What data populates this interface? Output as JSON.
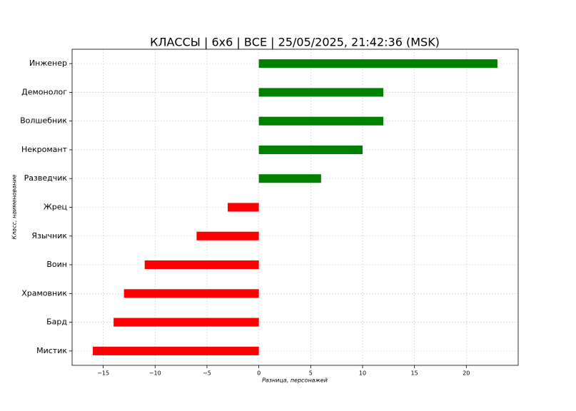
{
  "chart_data": {
    "type": "barh",
    "title": "КЛАССЫ | 6x6 | ВСЕ | 25/05/2025, 21:42:36 (MSK)",
    "xlabel": "Разница, персонажей",
    "ylabel": "Класс, наименование",
    "categories": [
      "Инженер",
      "Демонолог",
      "Волшебник",
      "Некромант",
      "Разведчик",
      "Жрец",
      "Язычник",
      "Воин",
      "Храмовник",
      "Бард",
      "Мистик"
    ],
    "values": [
      23,
      12,
      12,
      10,
      6,
      -3,
      -6,
      -11,
      -13,
      -14,
      -16
    ],
    "colors": [
      "#008000",
      "#008000",
      "#008000",
      "#008000",
      "#008000",
      "#ff0000",
      "#ff0000",
      "#ff0000",
      "#ff0000",
      "#ff0000",
      "#ff0000"
    ],
    "xlim": [
      -18,
      25
    ],
    "xticks": [
      {
        "value": -15,
        "label": "−15"
      },
      {
        "value": -10,
        "label": "−10"
      },
      {
        "value": -5,
        "label": "−5"
      },
      0,
      5,
      10,
      15,
      20
    ],
    "grid": true
  }
}
